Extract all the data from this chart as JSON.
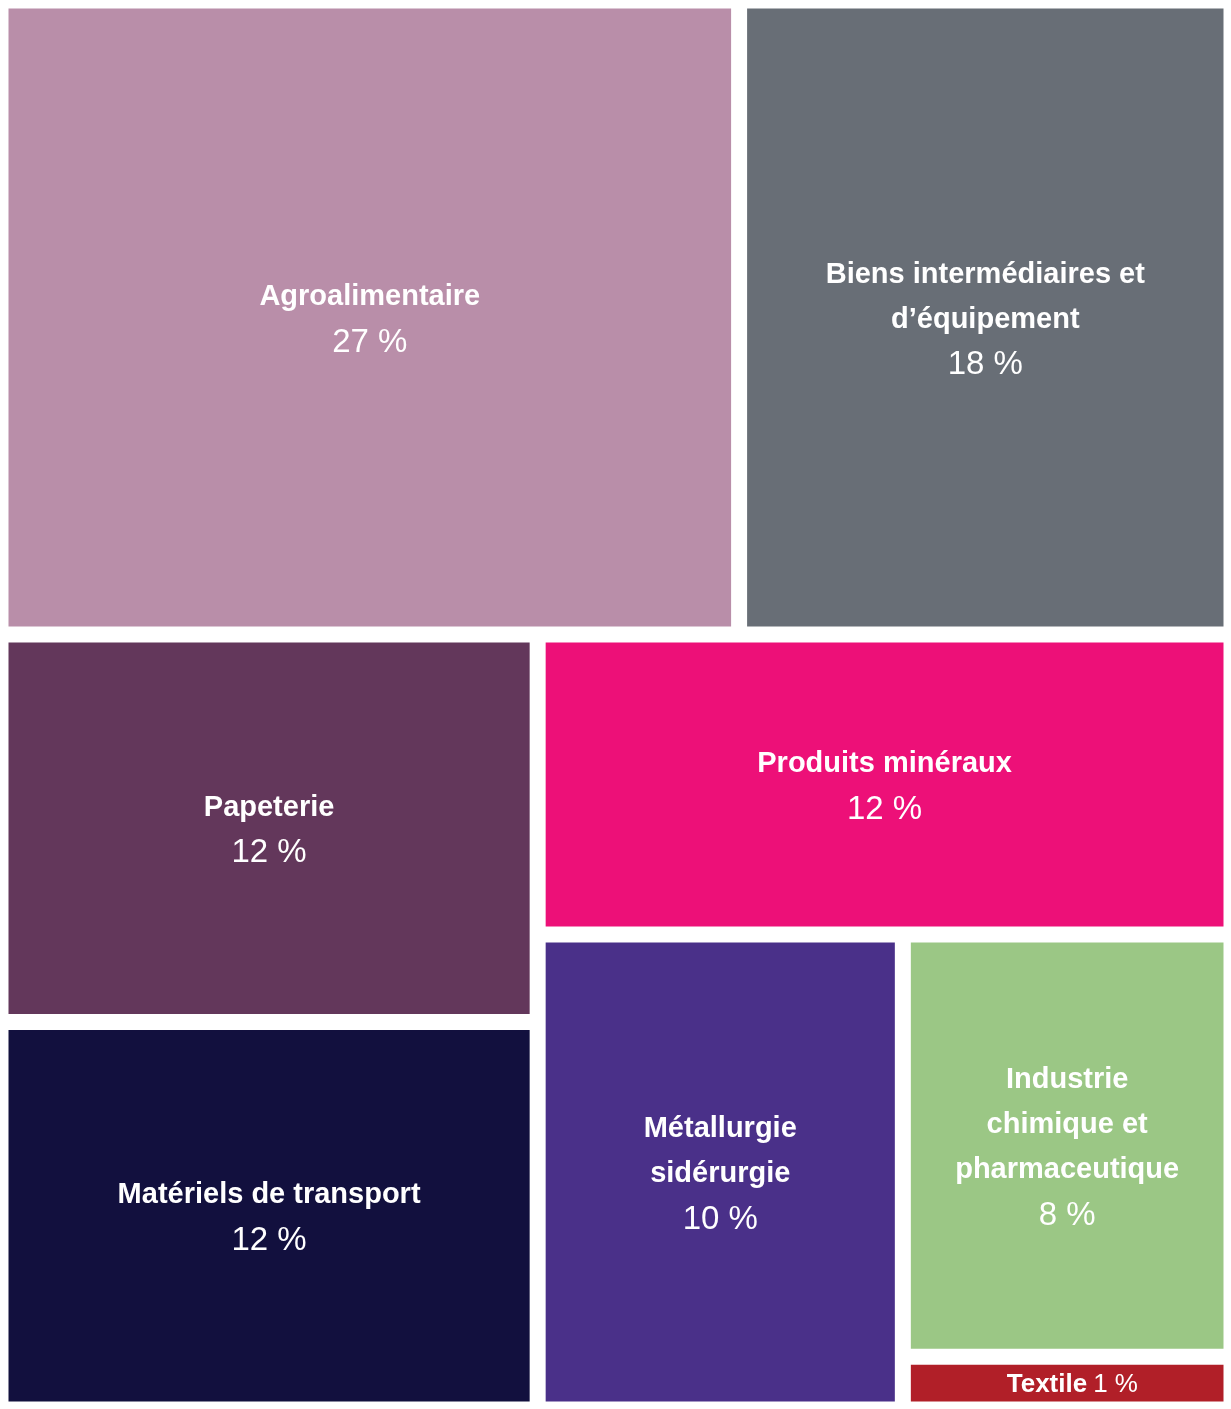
{
  "chart_data": {
    "type": "other",
    "categories": [
      "Agroalimentaire",
      "Biens intermédiaires et d’équipement",
      "Papeterie",
      "Matériels de transport",
      "Produits minéraux",
      "Métallurgie sidérurgie",
      "Industrie chimique et pharmaceutique",
      "Textile"
    ],
    "values": [
      27,
      18,
      12,
      12,
      12,
      10,
      8,
      1
    ],
    "value_labels": [
      "27 %",
      "18 %",
      "12 %",
      "12 %",
      "12 %",
      "10 %",
      "8 %",
      "1 %"
    ],
    "colors": [
      "#b98ea9",
      "#686e76",
      "#63375b",
      "#12103e",
      "#ed1078",
      "#4a3089",
      "#9bc785",
      "#b11f28"
    ]
  }
}
